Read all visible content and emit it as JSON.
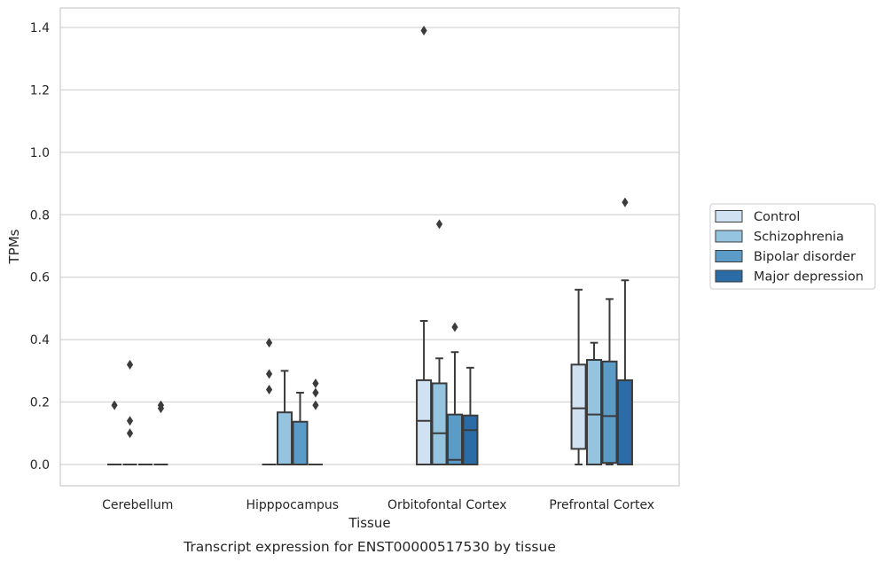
{
  "caption": "Transcript expression for ENST00000517530 by tissue",
  "chart_data": {
    "type": "boxplot",
    "title": "",
    "xlabel": "Tissue",
    "ylabel": "TPMs",
    "ylim": [
      -0.068,
      1.46
    ],
    "yticks": [
      0.0,
      0.2,
      0.4,
      0.6,
      0.8,
      1.0,
      1.2,
      1.4
    ],
    "ytick_labels": [
      "0.0",
      "0.2",
      "0.4",
      "0.6",
      "0.8",
      "1.0",
      "1.2",
      "1.4"
    ],
    "grid": "horizontal",
    "legend_position": "right",
    "categories": [
      "Cerebellum",
      "Hipppocampus",
      "Orbitofontal Cortex",
      "Prefrontal Cortex"
    ],
    "series": [
      {
        "name": "Control",
        "color": "#d0e1f2",
        "boxes": [
          {
            "q1": 0.0,
            "median": 0.0,
            "q3": 0.0,
            "whisker_low": 0.0,
            "whisker_high": 0.0,
            "outliers": [
              0.19
            ]
          },
          {
            "q1": 0.0,
            "median": 0.0,
            "q3": 0.0,
            "whisker_low": 0.0,
            "whisker_high": 0.0,
            "outliers": [
              0.39,
              0.29,
              0.24
            ]
          },
          {
            "q1": 0.0,
            "median": 0.14,
            "q3": 0.27,
            "whisker_low": 0.0,
            "whisker_high": 0.46,
            "outliers": [
              1.39
            ]
          },
          {
            "q1": 0.05,
            "median": 0.18,
            "q3": 0.32,
            "whisker_low": 0.0,
            "whisker_high": 0.56,
            "outliers": []
          }
        ]
      },
      {
        "name": "Schizophrenia",
        "color": "#94c4df",
        "boxes": [
          {
            "q1": 0.0,
            "median": 0.0,
            "q3": 0.0,
            "whisker_low": 0.0,
            "whisker_high": 0.0,
            "outliers": [
              0.32,
              0.14,
              0.1
            ]
          },
          {
            "q1": 0.0,
            "median": 0.0,
            "q3": 0.167,
            "whisker_low": 0.0,
            "whisker_high": 0.3,
            "outliers": []
          },
          {
            "q1": 0.0,
            "median": 0.1,
            "q3": 0.26,
            "whisker_low": 0.0,
            "whisker_high": 0.34,
            "outliers": [
              0.77
            ]
          },
          {
            "q1": 0.0,
            "median": 0.16,
            "q3": 0.335,
            "whisker_low": 0.0,
            "whisker_high": 0.39,
            "outliers": []
          }
        ]
      },
      {
        "name": "Bipolar disorder",
        "color": "#5a9bc8",
        "boxes": [
          {
            "q1": 0.0,
            "median": 0.0,
            "q3": 0.0,
            "whisker_low": 0.0,
            "whisker_high": 0.0,
            "outliers": []
          },
          {
            "q1": 0.0,
            "median": 0.0,
            "q3": 0.137,
            "whisker_low": 0.0,
            "whisker_high": 0.23,
            "outliers": []
          },
          {
            "q1": 0.0,
            "median": 0.015,
            "q3": 0.16,
            "whisker_low": 0.0,
            "whisker_high": 0.36,
            "outliers": [
              0.44
            ]
          },
          {
            "q1": 0.005,
            "median": 0.155,
            "q3": 0.33,
            "whisker_low": 0.0,
            "whisker_high": 0.53,
            "outliers": []
          }
        ]
      },
      {
        "name": "Major depression",
        "color": "#2b6ca6",
        "boxes": [
          {
            "q1": 0.0,
            "median": 0.0,
            "q3": 0.0,
            "whisker_low": 0.0,
            "whisker_high": 0.0,
            "outliers": [
              0.19,
              0.18
            ]
          },
          {
            "q1": 0.0,
            "median": 0.0,
            "q3": 0.0,
            "whisker_low": 0.0,
            "whisker_high": 0.0,
            "outliers": [
              0.26,
              0.23,
              0.19
            ]
          },
          {
            "q1": 0.0,
            "median": 0.11,
            "q3": 0.157,
            "whisker_low": 0.0,
            "whisker_high": 0.31,
            "outliers": []
          },
          {
            "q1": 0.0,
            "median": 0.0,
            "q3": 0.27,
            "whisker_low": 0.0,
            "whisker_high": 0.59,
            "outliers": [
              0.84
            ]
          }
        ]
      }
    ]
  }
}
